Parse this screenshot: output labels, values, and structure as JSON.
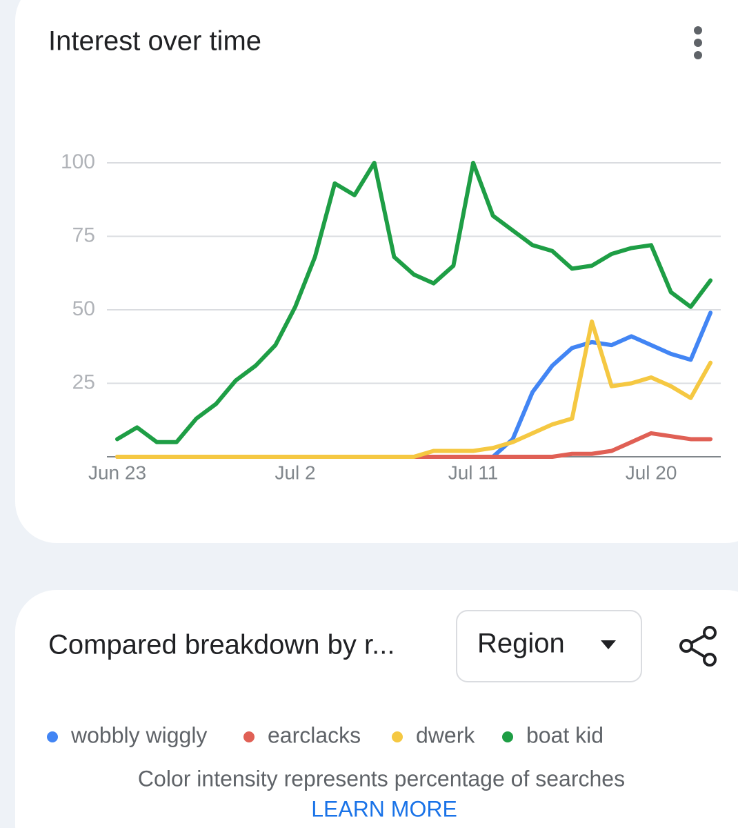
{
  "chart_data": {
    "type": "line",
    "title": "Interest over time",
    "categories": [
      "Jun 23",
      null,
      null,
      null,
      null,
      null,
      null,
      null,
      null,
      "Jul 2",
      null,
      null,
      null,
      null,
      null,
      null,
      null,
      null,
      "Jul 11",
      null,
      null,
      null,
      null,
      null,
      null,
      null,
      null,
      "Jul 20",
      null,
      null,
      null
    ],
    "series": [
      {
        "name": "wobbly wiggly",
        "color": "#4285f4",
        "values": [
          0,
          0,
          0,
          0,
          0,
          0,
          0,
          0,
          0,
          0,
          0,
          0,
          0,
          0,
          0,
          0,
          0,
          0,
          0,
          0,
          6,
          22,
          31,
          37,
          39,
          38,
          41,
          38,
          35,
          33,
          49
        ]
      },
      {
        "name": "earclacks",
        "color": "#e06055",
        "values": [
          0,
          0,
          0,
          0,
          0,
          0,
          0,
          0,
          0,
          0,
          0,
          0,
          0,
          0,
          0,
          0,
          0,
          0,
          0,
          0,
          0,
          0,
          0,
          1,
          1,
          2,
          5,
          8,
          7,
          6,
          6
        ]
      },
      {
        "name": "dwerk",
        "color": "#f5c842",
        "values": [
          0,
          0,
          0,
          0,
          0,
          0,
          0,
          0,
          0,
          0,
          0,
          0,
          0,
          0,
          0,
          0,
          2,
          2,
          2,
          3,
          5,
          8,
          11,
          13,
          46,
          24,
          25,
          27,
          24,
          20,
          32
        ]
      },
      {
        "name": "boat kid",
        "color": "#1e9e45",
        "values": [
          6,
          10,
          5,
          5,
          13,
          18,
          26,
          31,
          38,
          51,
          68,
          93,
          89,
          100,
          68,
          62,
          59,
          65,
          100,
          82,
          77,
          72,
          70,
          64,
          65,
          69,
          71,
          72,
          56,
          51,
          60
        ]
      }
    ],
    "ylim": [
      0,
      100
    ],
    "yticks": [
      25,
      50,
      75,
      100
    ],
    "grid": true
  },
  "breakdown": {
    "title": "Compared breakdown by r...",
    "dropdown": "Region",
    "note": "Color intensity represents percentage of searches",
    "link": "LEARN MORE"
  }
}
